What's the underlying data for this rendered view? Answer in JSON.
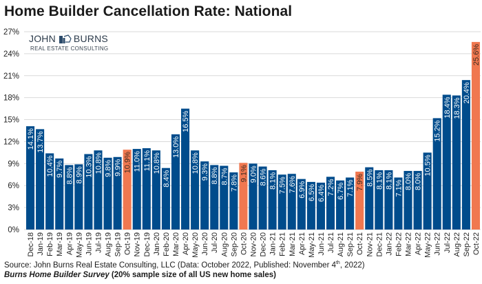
{
  "title": "Home Builder Cancellation Rate: National",
  "logo": {
    "name_left": "JOHN",
    "name_right": "BURNS",
    "tagline": "REAL ESTATE CONSULTING"
  },
  "footer": {
    "source_prefix": "Source: John Burns Real Estate Consulting, LLC (Data: October 2022, Published: November 4",
    "source_sup": "th",
    "source_suffix": ", 2022)",
    "survey_name": "Burns Home Builder Survey",
    "survey_note": " (20% sample size of all US new home sales)"
  },
  "colors": {
    "bar": "#004C8C",
    "highlight": "#F07850",
    "grid": "#d9d9d9",
    "label_on_bar": "#ffffff",
    "label_on_highlight": "#3a2a20"
  },
  "chart_data": {
    "type": "bar",
    "title": "Home Builder Cancellation Rate: National",
    "xlabel": "",
    "ylabel": "",
    "ylim": [
      0,
      27
    ],
    "yticks": [
      "0%",
      "3%",
      "6%",
      "9%",
      "12%",
      "15%",
      "18%",
      "21%",
      "24%",
      "27%"
    ],
    "ytick_values": [
      0,
      3,
      6,
      9,
      12,
      15,
      18,
      21,
      24,
      27
    ],
    "grid": true,
    "categories": [
      "Dec-18",
      "Jan-19",
      "Feb-19",
      "Mar-19",
      "Apr-19",
      "May-19",
      "Jun-19",
      "Jul-19",
      "Aug-19",
      "Sep-19",
      "Oct-19",
      "Nov-19",
      "Dec-19",
      "Jan-20",
      "Feb-20",
      "Mar-20",
      "Apr-20",
      "May-20",
      "Jun-20",
      "Jul-20",
      "Aug-20",
      "Sep-20",
      "Oct-20",
      "Nov-20",
      "Dec-20",
      "Jan-21",
      "Feb-21",
      "Mar-21",
      "Apr-21",
      "May-21",
      "Jun-21",
      "Jul-21",
      "Aug-21",
      "Sep-21",
      "Oct-21",
      "Nov-21",
      "Dec-21",
      "Jan-22",
      "Feb-22",
      "Mar-22",
      "Apr-22",
      "May-22",
      "Jun-22",
      "Jul-22",
      "Aug-22",
      "Sep-22",
      "Oct-22"
    ],
    "values": [
      14.1,
      13.7,
      10.4,
      9.7,
      8.8,
      8.9,
      10.3,
      10.8,
      9.8,
      9.9,
      10.9,
      11.0,
      11.1,
      10.8,
      8.4,
      13.0,
      16.5,
      10.8,
      9.3,
      8.8,
      8.7,
      7.8,
      9.1,
      9.0,
      8.6,
      8.1,
      7.5,
      7.6,
      6.9,
      6.5,
      6.4,
      7.2,
      6.7,
      7.1,
      7.9,
      8.5,
      8.1,
      8.1,
      7.1,
      8.0,
      8.0,
      10.5,
      15.2,
      18.4,
      18.3,
      20.4,
      25.6
    ],
    "data_labels": [
      "14.1%",
      "13.7%",
      "10.4%",
      "9.7%",
      "8.8%",
      "8.9%",
      "10.3%",
      "10.8%",
      "9.8%",
      "9.9%",
      "10.9%",
      "11.0%",
      "11.1%",
      "10.8%",
      "8.4%",
      "13.0%",
      "16.5%",
      "10.8%",
      "9.3%",
      "8.8%",
      "8.7%",
      "7.8%",
      "9.1%",
      "9.0%",
      "8.6%",
      "8.1%",
      "7.5%",
      "7.6%",
      "6.9%",
      "6.5%",
      "6.4%",
      "7.2%",
      "6.7%",
      "7.1%",
      "7.9%",
      "8.5%",
      "8.1%",
      "8.1%",
      "7.1%",
      "8.0%",
      "8.0%",
      "10.5%",
      "15.2%",
      "18.4%",
      "18.3%",
      "20.4%",
      "25.6%"
    ],
    "highlighted_categories": [
      "Oct-19",
      "Oct-20",
      "Oct-21",
      "Oct-22"
    ],
    "legend": "none"
  }
}
